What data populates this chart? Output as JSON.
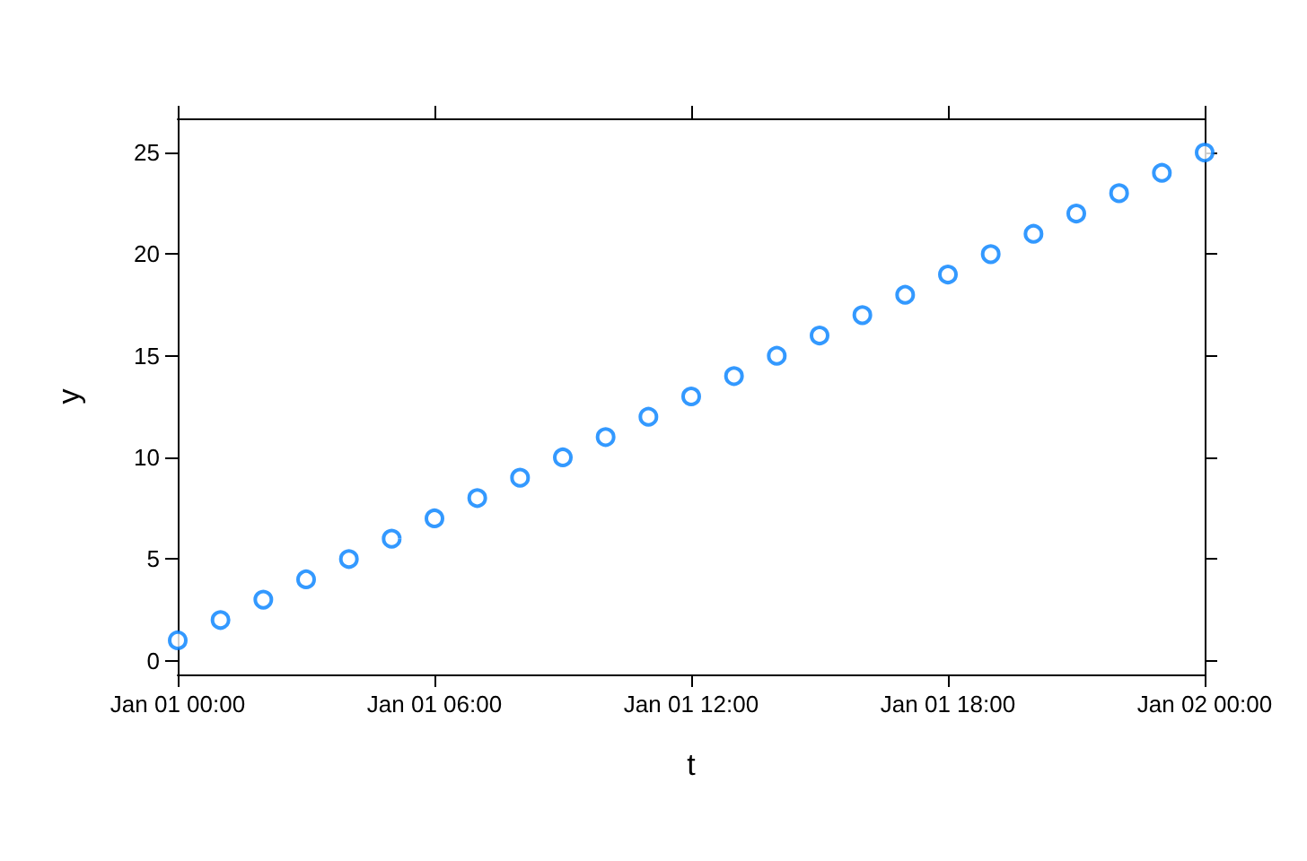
{
  "chart_data": {
    "type": "scatter",
    "xlabel": "t",
    "ylabel": "y",
    "x": [
      "--01-01T00:00",
      "--01-01T01:00",
      "--01-01T02:00",
      "--01-01T03:00",
      "--01-01T04:00",
      "--01-01T05:00",
      "--01-01T06:00",
      "--01-01T07:00",
      "--01-01T08:00",
      "--01-01T09:00",
      "--01-01T10:00",
      "--01-01T11:00",
      "--01-01T12:00",
      "--01-01T13:00",
      "--01-01T14:00",
      "--01-01T15:00",
      "--01-01T16:00",
      "--01-01T17:00",
      "--01-01T18:00",
      "--01-01T19:00",
      "--01-01T20:00",
      "--01-01T21:00",
      "--01-01T22:00",
      "--01-01T23:00",
      "--01-02T00:00"
    ],
    "series": [
      {
        "color": "#0080ff",
        "values": [
          1,
          2,
          3,
          4,
          5,
          6,
          7,
          8,
          9,
          10,
          11,
          12,
          13,
          14,
          15,
          16,
          17,
          18,
          19,
          20,
          21,
          22,
          23,
          24,
          25
        ]
      }
    ],
    "xlim": [
      "--01-01T00:00",
      "--01-02T00:00"
    ],
    "ylim": [
      -0.68,
      26.68
    ],
    "xticks": [
      {
        "value": "--01-01T00:00",
        "label": "Jan 01 00:00"
      },
      {
        "value": "--01-01T06:00",
        "label": "Jan 01 06:00"
      },
      {
        "value": "--01-01T12:00",
        "label": "Jan 01 12:00"
      },
      {
        "value": "--01-01T18:00",
        "label": "Jan 01 18:00"
      },
      {
        "value": "--01-02T00:00",
        "label": "Jan 02 00:00"
      }
    ],
    "yticks": [
      0,
      5,
      10,
      15,
      20,
      25
    ],
    "grid": false,
    "marker": "circle"
  }
}
